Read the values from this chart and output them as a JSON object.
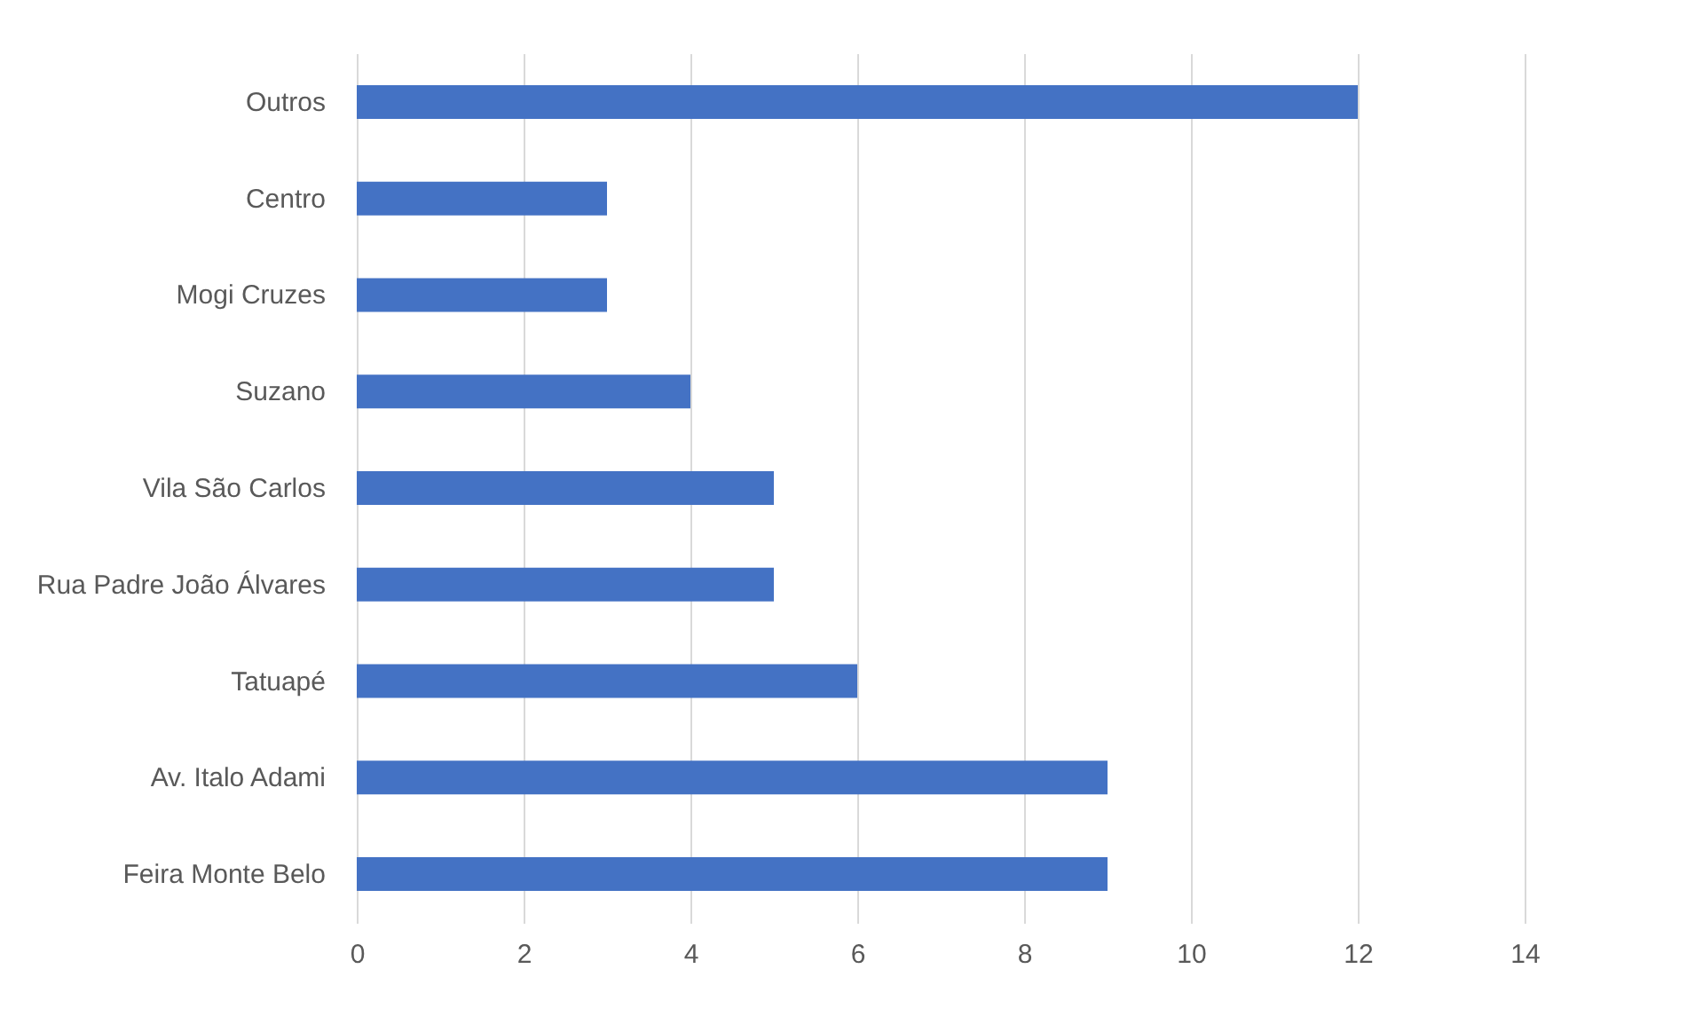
{
  "chart_data": {
    "type": "bar",
    "orientation": "horizontal",
    "categories": [
      "Outros",
      "Centro",
      "Mogi Cruzes",
      "Suzano",
      "Vila São Carlos",
      "Rua Padre João Álvares",
      "Tatuapé",
      "Av. Italo Adami",
      "Feira Monte Belo"
    ],
    "values": [
      12,
      3,
      3,
      4,
      5,
      5,
      6,
      9,
      9
    ],
    "color": "#4472c4",
    "xlim": [
      0,
      14
    ],
    "xticks": [
      0,
      2,
      4,
      6,
      8,
      10,
      12,
      14
    ],
    "grid": "x"
  }
}
